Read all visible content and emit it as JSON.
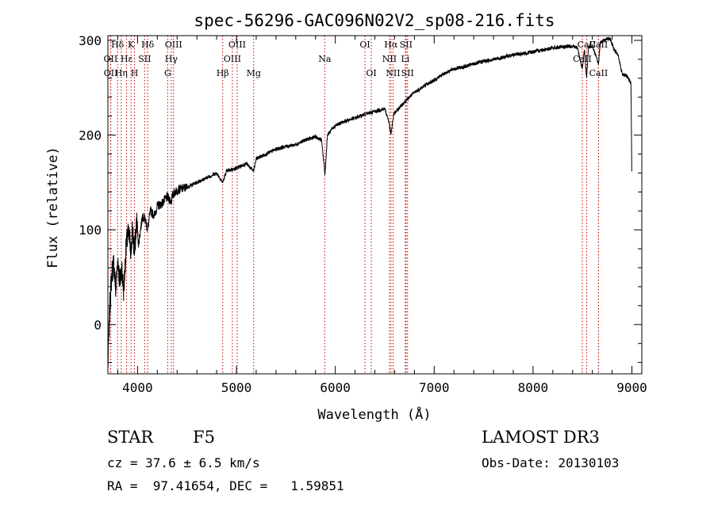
{
  "chart_data": {
    "type": "line",
    "title": "spec-56296-GAC096N02V2_sp08-216.fits",
    "xlabel": "Wavelength (Å)",
    "ylabel": "Flux (relative)",
    "xlim": [
      3700,
      9100
    ],
    "ylim": [
      -52,
      305
    ],
    "xticks": [
      4000,
      5000,
      6000,
      7000,
      8000,
      9000
    ],
    "yticks": [
      0,
      100,
      200,
      300
    ],
    "grid": false,
    "series": [
      {
        "name": "flux",
        "x": [
          3700,
          3720,
          3740,
          3760,
          3780,
          3800,
          3820,
          3840,
          3860,
          3880,
          3900,
          3920,
          3934,
          3950,
          3970,
          3990,
          4010,
          4050,
          4080,
          4102,
          4130,
          4170,
          4200,
          4250,
          4300,
          4340,
          4360,
          4400,
          4500,
          4600,
          4700,
          4800,
          4861,
          4900,
          5000,
          5100,
          5175,
          5200,
          5300,
          5400,
          5500,
          5600,
          5700,
          5800,
          5860,
          5890,
          5896,
          5920,
          6000,
          6100,
          6200,
          6300,
          6400,
          6500,
          6540,
          6563,
          6590,
          6700,
          6800,
          6900,
          7000,
          7100,
          7200,
          7300,
          7400,
          7500,
          7600,
          7700,
          7800,
          7900,
          8000,
          8100,
          8200,
          8300,
          8400,
          8450,
          8498,
          8520,
          8542,
          8560,
          8600,
          8662,
          8680,
          8720,
          8780,
          8820,
          8860,
          8900,
          8950,
          8990,
          9000
        ],
        "y": [
          -45,
          20,
          55,
          65,
          35,
          70,
          45,
          60,
          35,
          75,
          95,
          90,
          78,
          100,
          75,
          110,
          85,
          115,
          110,
          100,
          120,
          115,
          125,
          128,
          135,
          130,
          138,
          142,
          145,
          150,
          155,
          160,
          150,
          162,
          165,
          170,
          162,
          175,
          180,
          185,
          188,
          190,
          195,
          198,
          195,
          165,
          158,
          200,
          210,
          215,
          218,
          222,
          225,
          228,
          215,
          200,
          222,
          235,
          245,
          252,
          258,
          265,
          270,
          272,
          275,
          278,
          280,
          282,
          285,
          286,
          288,
          290,
          292,
          293,
          294,
          292,
          270,
          290,
          260,
          292,
          295,
          275,
          298,
          300,
          302,
          290,
          285,
          265,
          262,
          255,
          150
        ]
      }
    ],
    "lines": [
      {
        "label": "Hδ",
        "wavelength": 3798,
        "row": 0
      },
      {
        "label": "OII",
        "wavelength": 3727,
        "row": 1
      },
      {
        "label": "OII",
        "wavelength": 3729,
        "row": 2
      },
      {
        "label": "Hε",
        "wavelength": 3889,
        "row": 1
      },
      {
        "label": "Hη",
        "wavelength": 3835,
        "row": 2
      },
      {
        "label": "K",
        "wavelength": 3934,
        "row": 0
      },
      {
        "label": "SII",
        "wavelength": 4072,
        "row": 1
      },
      {
        "label": "H",
        "wavelength": 3969,
        "row": 2
      },
      {
        "label": "Hδ",
        "wavelength": 4102,
        "row": 0
      },
      {
        "label": "OIII",
        "wavelength": 4364,
        "row": 0
      },
      {
        "label": "Hγ",
        "wavelength": 4341,
        "row": 1
      },
      {
        "label": "G",
        "wavelength": 4305,
        "row": 2
      },
      {
        "label": "Hβ",
        "wavelength": 4861,
        "row": 2
      },
      {
        "label": "OIII",
        "wavelength": 5007,
        "row": 0
      },
      {
        "label": "OIII",
        "wavelength": 4959,
        "row": 1
      },
      {
        "label": "Mg",
        "wavelength": 5175,
        "row": 2
      },
      {
        "label": "Na",
        "wavelength": 5893,
        "row": 1
      },
      {
        "label": "OI",
        "wavelength": 6300,
        "row": 0
      },
      {
        "label": "OI",
        "wavelength": 6364,
        "row": 2
      },
      {
        "label": "Hα",
        "wavelength": 6563,
        "row": 0
      },
      {
        "label": "NII",
        "wavelength": 6548,
        "row": 1
      },
      {
        "label": "NII",
        "wavelength": 6584,
        "row": 2
      },
      {
        "label": "SII",
        "wavelength": 6716,
        "row": 0
      },
      {
        "label": "Li",
        "wavelength": 6708,
        "row": 1
      },
      {
        "label": "SII",
        "wavelength": 6731,
        "row": 2
      },
      {
        "label": "CaII",
        "wavelength": 8662,
        "row": 0
      },
      {
        "label": "CaII",
        "wavelength": 8542,
        "row": 0
      },
      {
        "label": "CaII",
        "wavelength": 8498,
        "row": 1
      },
      {
        "label": "CaII",
        "wavelength": 8662,
        "row": 2
      }
    ]
  },
  "info": {
    "object_class": "STAR",
    "subclass": "F5",
    "survey": "LAMOST DR3",
    "redshift": "cz = 37.6 ± 6.5 km/s",
    "obs_date": "Obs-Date: 20130103",
    "coords": "RA =  97.41654, DEC =   1.59851"
  }
}
